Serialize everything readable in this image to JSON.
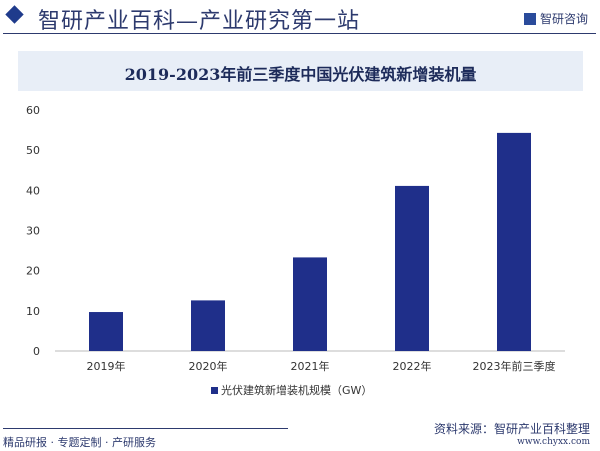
{
  "header": {
    "site_title": "智研产业百科—产业研究第一站",
    "logo_text": "智研咨询"
  },
  "footer": {
    "left": "精品研报 · 专题定制 · 产研服务",
    "source": "资料来源：智研产业百科整理",
    "url": "www.chyxx.com"
  },
  "chart_data": {
    "type": "bar",
    "title": "2019-2023年前三季度中国光伏建筑新增装机量",
    "categories": [
      "2019年",
      "2020年",
      "2021年",
      "2022年",
      "2023年前三季度"
    ],
    "series": [
      {
        "name": "光伏建筑新增装机规模（GW）",
        "values": [
          9.7,
          12.6,
          23.3,
          41.1,
          54.3
        ],
        "color": "#1f2f8a"
      }
    ],
    "ylim": [
      0,
      60
    ],
    "yticks": [
      "0",
      "10",
      "20",
      "30",
      "40",
      "50",
      "60"
    ],
    "grid": false,
    "legend": "bottom"
  }
}
